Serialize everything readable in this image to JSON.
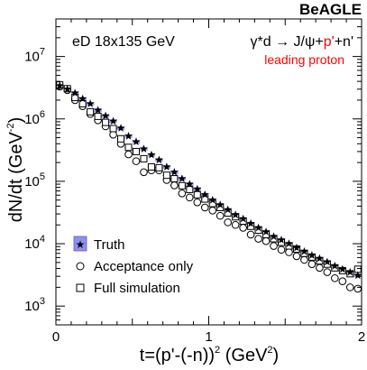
{
  "brand": "BeAGLE",
  "chart_data": {
    "type": "scatter",
    "title": "",
    "annotations": {
      "energy": "eD 18x135 GeV",
      "process_prefix": "γ*d → J/ψ+",
      "process_highlight": "p'",
      "process_suffix": "+n'",
      "subtitle": "leading proton"
    },
    "xlabel": {
      "base": "t=(p'-(-n))",
      "sup1": "2",
      "unit_open": " (GeV",
      "sup2": "2",
      "unit_close": ")"
    },
    "ylabel": {
      "base": "dN/dt (GeV",
      "sup": "-2",
      "close": ")"
    },
    "xlim": [
      0,
      2
    ],
    "ylim": [
      500,
      40000000
    ],
    "yscale": "log",
    "x_ticks": [
      {
        "value": 0,
        "label": "0"
      },
      {
        "value": 1,
        "label": "1"
      },
      {
        "value": 2,
        "label": "2"
      }
    ],
    "y_ticks": [
      {
        "value": 1000,
        "base": "10",
        "exp": "3"
      },
      {
        "value": 10000,
        "base": "10",
        "exp": "4"
      },
      {
        "value": 100000,
        "base": "10",
        "exp": "5"
      },
      {
        "value": 1000000,
        "base": "10",
        "exp": "6"
      },
      {
        "value": 10000000,
        "base": "10",
        "exp": "7"
      }
    ],
    "legend_position": "bottom-left",
    "colors": {
      "truth_band": "#8f8fef",
      "red": "#ff0000",
      "black": "#000000"
    },
    "series": [
      {
        "name": "Truth",
        "marker": "star",
        "x": [
          0.025,
          0.075,
          0.125,
          0.175,
          0.225,
          0.275,
          0.325,
          0.375,
          0.425,
          0.475,
          0.525,
          0.575,
          0.625,
          0.675,
          0.725,
          0.775,
          0.825,
          0.875,
          0.925,
          0.975,
          1.025,
          1.075,
          1.125,
          1.175,
          1.225,
          1.275,
          1.325,
          1.375,
          1.425,
          1.475,
          1.525,
          1.575,
          1.625,
          1.675,
          1.725,
          1.775,
          1.825,
          1.875,
          1.925,
          1.975
        ],
        "y": [
          3400000,
          3000000,
          2600000,
          2100000,
          1750000,
          1380000,
          1120000,
          920000,
          710000,
          530000,
          430000,
          330000,
          265000,
          220000,
          170000,
          140000,
          110000,
          90000,
          75000,
          61000,
          50000,
          42000,
          35000,
          29000,
          25000,
          21000,
          18000,
          15500,
          13000,
          11500,
          10000,
          8600,
          7500,
          6500,
          5800,
          5100,
          4400,
          3900,
          3500,
          3100
        ]
      },
      {
        "name": "Acceptance only",
        "marker": "open-circle",
        "x": [
          0.025,
          0.075,
          0.125,
          0.175,
          0.225,
          0.275,
          0.325,
          0.375,
          0.425,
          0.475,
          0.525,
          0.575,
          0.625,
          0.675,
          0.725,
          0.775,
          0.825,
          0.875,
          0.925,
          0.975,
          1.025,
          1.075,
          1.125,
          1.175,
          1.225,
          1.275,
          1.325,
          1.375,
          1.425,
          1.475,
          1.525,
          1.575,
          1.625,
          1.675,
          1.725,
          1.775,
          1.825,
          1.875,
          1.925,
          1.975
        ],
        "y": [
          3300000,
          2900000,
          2000000,
          1600000,
          1200000,
          950000,
          760000,
          560000,
          400000,
          270000,
          210000,
          140000,
          150000,
          150000,
          105000,
          86000,
          64000,
          55000,
          46000,
          38000,
          34000,
          28000,
          22000,
          20000,
          18000,
          14000,
          12000,
          11000,
          9200,
          8000,
          7300,
          6300,
          5500,
          4700,
          4100,
          3500,
          2800,
          2500,
          2000,
          1900
        ]
      },
      {
        "name": "Full simulation",
        "marker": "open-square",
        "x": [
          0.025,
          0.075,
          0.125,
          0.175,
          0.225,
          0.275,
          0.325,
          0.375,
          0.425,
          0.475,
          0.525,
          0.575,
          0.625,
          0.675,
          0.725,
          0.775,
          0.825,
          0.875,
          0.925,
          0.975,
          1.025,
          1.075,
          1.125,
          1.175,
          1.225,
          1.275,
          1.325,
          1.375,
          1.425,
          1.475,
          1.525,
          1.575,
          1.625,
          1.675,
          1.725,
          1.775,
          1.825,
          1.875,
          1.925,
          1.975
        ],
        "y": [
          3500000,
          3050000,
          2200000,
          1750000,
          1300000,
          1100000,
          880000,
          700000,
          480000,
          350000,
          300000,
          230000,
          170000,
          165000,
          125000,
          110000,
          85000,
          74000,
          61000,
          52000,
          44000,
          38000,
          31000,
          27000,
          23000,
          19000,
          16500,
          14000,
          12000,
          10500,
          9200,
          8200,
          7000,
          6100,
          5300,
          4700,
          4100,
          3700,
          3300,
          3900
        ]
      }
    ]
  }
}
